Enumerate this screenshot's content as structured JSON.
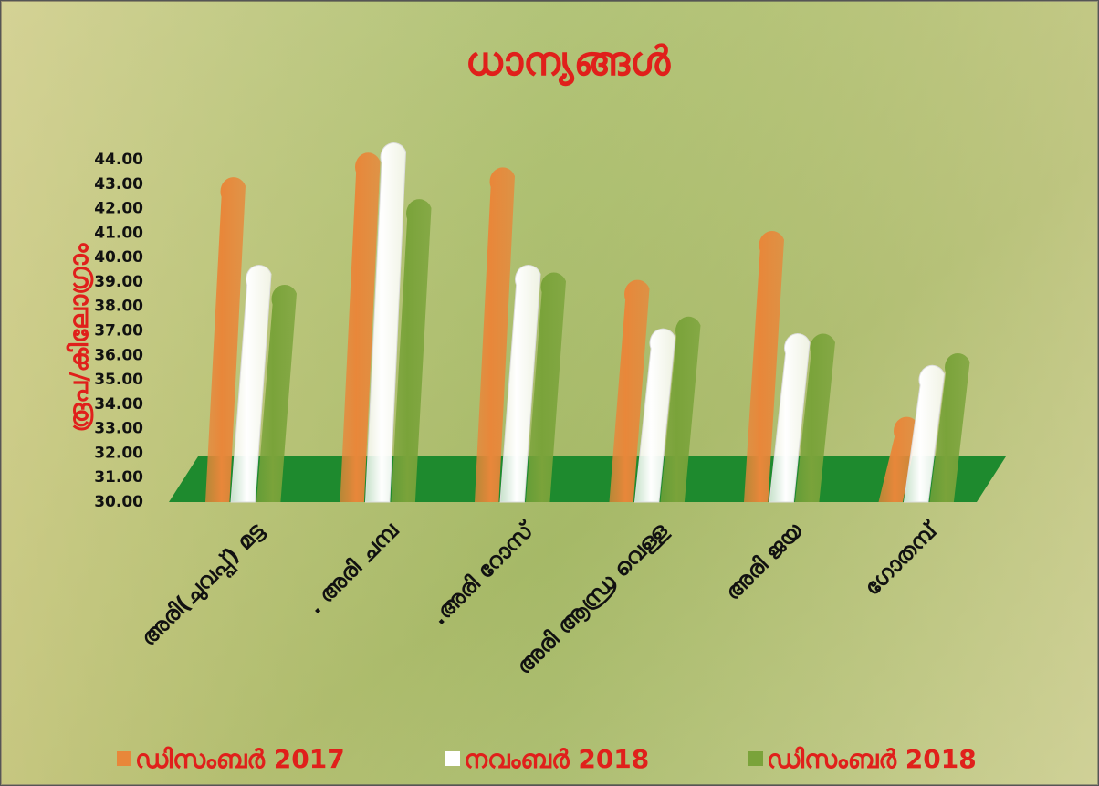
{
  "chart_data": {
    "type": "bar",
    "title": "ധാന്യങ്ങൾ",
    "y_label": "രൂപ/കിലോഗ്രാം",
    "categories": [
      "അരി(ചുവപ്പ്) മട്ട",
      ". അരി ചമ്പ",
      ".അരി റോസ്",
      "അരി ആന്ധ്ര വെള്ള",
      "അരി ജയ",
      "ഗോതമ്പ്"
    ],
    "series": [
      {
        "name": "ഡിസംബർ 2017",
        "color": "#e8873a",
        "values": [
          42.2,
          43.2,
          42.6,
          38.0,
          40.0,
          32.4
        ]
      },
      {
        "name": "നവംബർ 2018",
        "color": "#ffffff",
        "values": [
          38.6,
          43.6,
          38.6,
          36.0,
          35.8,
          34.5
        ]
      },
      {
        "name": "ഡിസംബർ 2018",
        "color": "#7aa33a",
        "values": [
          37.8,
          41.3,
          38.3,
          36.5,
          35.8,
          35.0
        ]
      }
    ],
    "ylim": [
      30,
      44
    ],
    "yticks": [
      {
        "value": 30,
        "label": "30.00"
      },
      {
        "value": 31,
        "label": "31.00"
      },
      {
        "value": 32,
        "label": "32.00"
      },
      {
        "value": 33,
        "label": "33.00"
      },
      {
        "value": 34,
        "label": "34.00"
      },
      {
        "value": 35,
        "label": "35.00"
      },
      {
        "value": 36,
        "label": "36.00"
      },
      {
        "value": 37,
        "label": "37.00"
      },
      {
        "value": 38,
        "label": "38.00"
      },
      {
        "value": 39,
        "label": "39.00"
      },
      {
        "value": 40,
        "label": "40.00"
      },
      {
        "value": 41,
        "label": "41.00"
      },
      {
        "value": 42,
        "label": "42.00"
      },
      {
        "value": 43,
        "label": "43.00"
      },
      {
        "value": 44,
        "label": "44.00"
      }
    ],
    "floor_color": "#1e8a2e"
  }
}
